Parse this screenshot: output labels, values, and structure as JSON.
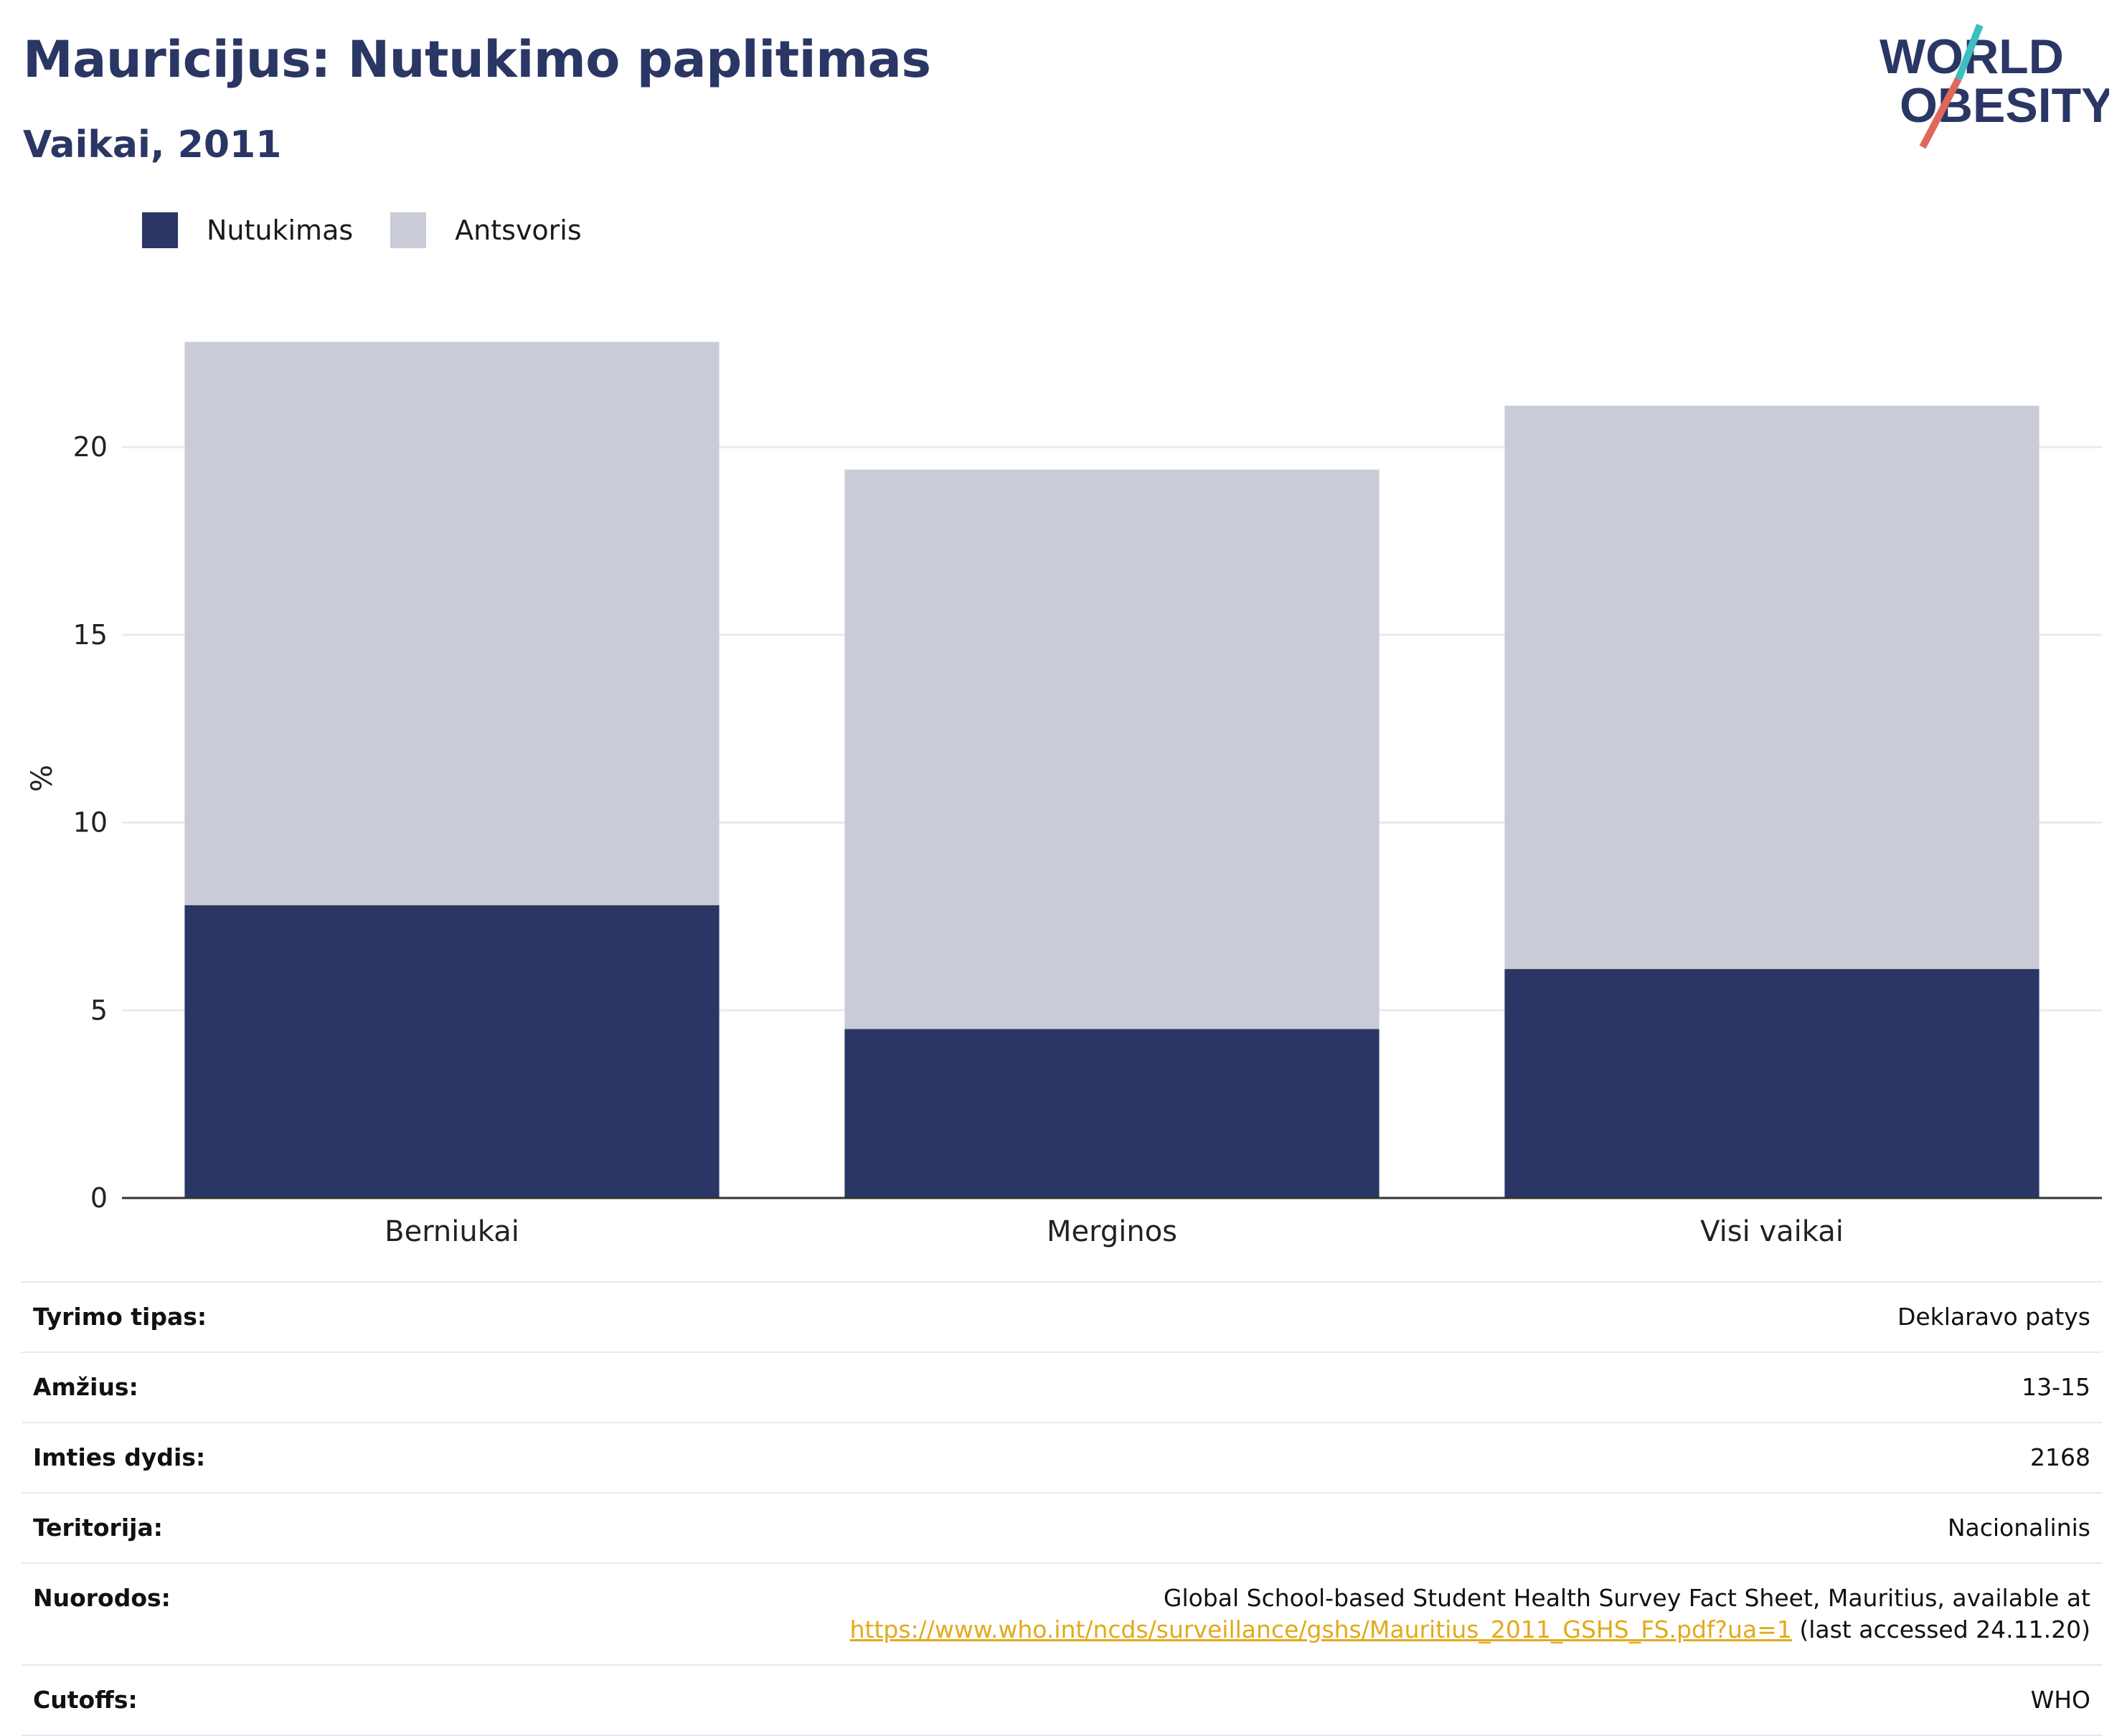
{
  "header": {
    "title": "Mauricijus: Nutukimo paplitimas",
    "subtitle": "Vaikai, 2011"
  },
  "logo": {
    "line1": "WORLD",
    "line2": "OBESITY",
    "colors": {
      "text": "#2a3664",
      "slash_teal": "#3bbfbf",
      "slash_coral": "#e0685a"
    }
  },
  "legend": {
    "items": [
      {
        "label": "Nutukimas",
        "color": "#2a3664"
      },
      {
        "label": "Antsvoris",
        "color": "#c9ccd7"
      }
    ]
  },
  "chart_data": {
    "type": "bar",
    "stacked": true,
    "categories": [
      "Berniukai",
      "Merginos",
      "Visi vaikai"
    ],
    "series": [
      {
        "name": "Nutukimas",
        "values": [
          7.8,
          4.5,
          6.1
        ],
        "color": "#2a3664"
      },
      {
        "name": "Antsvoris",
        "values": [
          15.0,
          14.9,
          15.0
        ],
        "color": "#c9ccd7"
      }
    ],
    "ylabel": "%",
    "xlabel": "",
    "ylim": [
      0,
      23.5
    ],
    "yticks": [
      0,
      5,
      10,
      15,
      20
    ],
    "grid": true,
    "legend_position": "top-left"
  },
  "metadata": {
    "rows": [
      {
        "key": "Tyrimo tipas:",
        "value": "Deklaravo patys"
      },
      {
        "key": "Amžius:",
        "value": "13-15"
      },
      {
        "key": "Imties dydis:",
        "value": "2168"
      },
      {
        "key": "Teritorija:",
        "value": "Nacionalinis"
      },
      {
        "key": "Cutoffs:",
        "value": "WHO"
      }
    ],
    "references": {
      "key": "Nuorodos:",
      "text_before": "Global School-based Student Health Survey Fact Sheet, Mauritius, available at",
      "link": "https://www.who.int/ncds/surveillance/gshs/Mauritius_2011_GSHS_FS.pdf?ua=1",
      "text_after": " (last accessed 24.11.20)"
    }
  }
}
